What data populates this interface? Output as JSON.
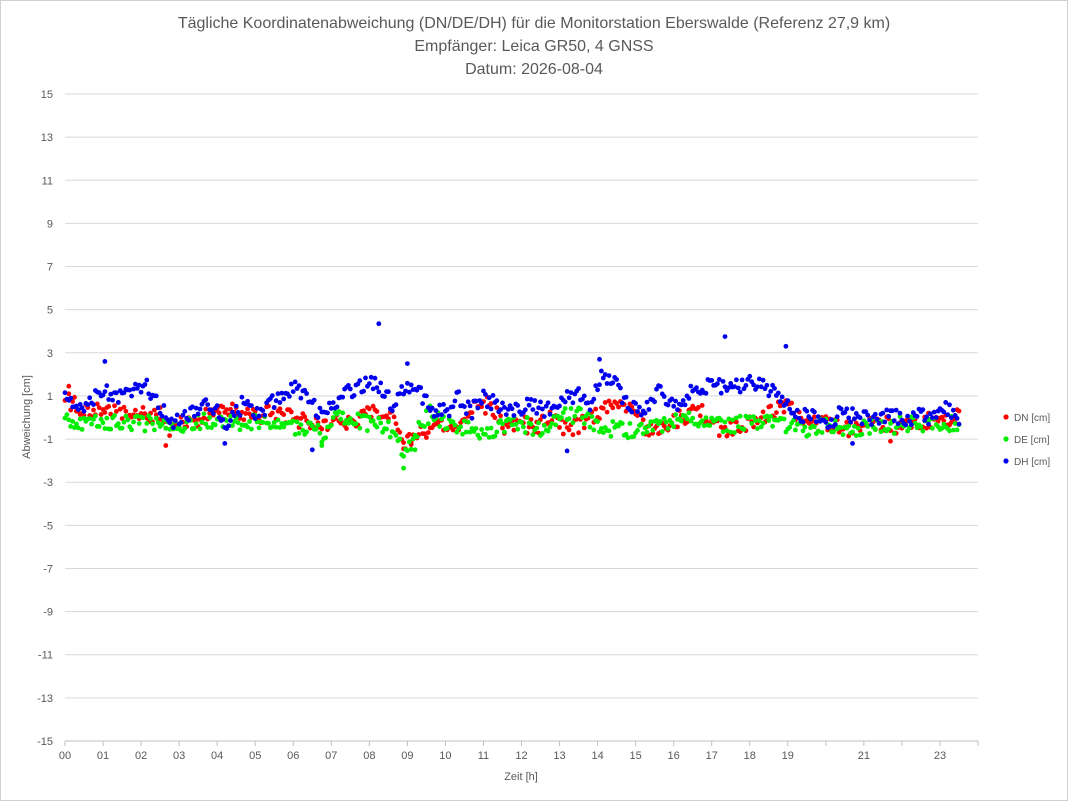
{
  "chart_data": {
    "type": "scatter",
    "title": "Tägliche Koordinatenabweichung (DN/DE/DH) für die Monitorstation Eberswalde (Referenz 27,9 km)",
    "subtitle_1": "Empfänger: Leica GR50, 4 GNSS",
    "subtitle_2": "Datum: 2026-08-04",
    "xlabel": "Zeit [h]",
    "ylabel": "Abweichung [cm]",
    "xlim": [
      0,
      24
    ],
    "ylim": [
      -15,
      15
    ],
    "x_ticks": [
      "00",
      "01",
      "02",
      "03",
      "04",
      "05",
      "06",
      "07",
      "08",
      "09",
      "10",
      "11",
      "12",
      "13",
      "14",
      "15",
      "16",
      "17",
      "18",
      "19",
      "21",
      "23"
    ],
    "y_ticks": [
      15,
      13,
      11,
      9,
      7,
      5,
      3,
      1,
      -1,
      -3,
      -5,
      -7,
      -9,
      -11,
      -13,
      -15
    ],
    "y_tick_labels": [
      "15",
      "13",
      "11",
      "9",
      "7",
      "5",
      "3",
      "1",
      "-1",
      "-3",
      "-5",
      "-7",
      "-9",
      "-11",
      "-13",
      "-15"
    ],
    "ylabel_display": "Abweichung [cm]",
    "grid": "horizontal",
    "legend_position": "right",
    "sampling_interval_min": 3,
    "series": [
      {
        "name": "DN [cm]",
        "color": "#ff0000",
        "centers": [
          [
            0,
            0.9
          ],
          [
            0.5,
            0.3
          ],
          [
            1,
            0.4
          ],
          [
            1.5,
            0.3
          ],
          [
            2,
            0.2
          ],
          [
            2.5,
            0.1
          ],
          [
            2.8,
            -0.6
          ],
          [
            3,
            -0.3
          ],
          [
            3.5,
            -0.1
          ],
          [
            4,
            0.3
          ],
          [
            4.5,
            0.3
          ],
          [
            5,
            0.1
          ],
          [
            5.5,
            0.2
          ],
          [
            6,
            0.0
          ],
          [
            6.6,
            -0.4
          ],
          [
            7,
            -0.2
          ],
          [
            7.5,
            -0.3
          ],
          [
            8,
            0.3
          ],
          [
            8.5,
            0.3
          ],
          [
            8.95,
            -1.2
          ],
          [
            9.3,
            -0.7
          ],
          [
            9.8,
            -0.4
          ],
          [
            10.2,
            -0.6
          ],
          [
            10.8,
            0.5
          ],
          [
            11.2,
            0.6
          ],
          [
            11.6,
            -0.5
          ],
          [
            12,
            -0.3
          ],
          [
            12.4,
            -0.5
          ],
          [
            12.8,
            0.2
          ],
          [
            13.2,
            -0.6
          ],
          [
            13.6,
            -0.3
          ],
          [
            14,
            0.2
          ],
          [
            14.3,
            0.6
          ],
          [
            14.7,
            0.5
          ],
          [
            15,
            0.3
          ],
          [
            15.3,
            -0.6
          ],
          [
            15.7,
            -0.4
          ],
          [
            16.2,
            0.0
          ],
          [
            16.7,
            0.3
          ],
          [
            17.2,
            -0.6
          ],
          [
            17.7,
            -0.5
          ],
          [
            18.2,
            -0.1
          ],
          [
            18.6,
            0.3
          ],
          [
            19,
            0.5
          ],
          [
            19.5,
            -0.3
          ],
          [
            20,
            -0.3
          ],
          [
            20.5,
            -0.5
          ],
          [
            21,
            -0.4
          ],
          [
            21.5,
            -0.2
          ],
          [
            22,
            -0.5
          ],
          [
            22.5,
            -0.2
          ],
          [
            23,
            -0.1
          ],
          [
            23.5,
            0.1
          ]
        ],
        "outliers": [
          [
            0.1,
            1.45
          ],
          [
            2.65,
            -1.3
          ],
          [
            8.9,
            -1.45
          ],
          [
            9.1,
            -1.25
          ],
          [
            21.7,
            -1.1
          ]
        ]
      },
      {
        "name": "DE [cm]",
        "color": "#00ee00",
        "centers": [
          [
            0,
            -0.1
          ],
          [
            0.5,
            -0.3
          ],
          [
            1,
            -0.2
          ],
          [
            1.5,
            -0.2
          ],
          [
            2,
            -0.3
          ],
          [
            2.5,
            -0.2
          ],
          [
            3,
            -0.3
          ],
          [
            3.5,
            -0.2
          ],
          [
            4,
            -0.1
          ],
          [
            4.5,
            -0.2
          ],
          [
            5,
            -0.2
          ],
          [
            5.5,
            -0.3
          ],
          [
            6,
            -0.5
          ],
          [
            6.5,
            -0.4
          ],
          [
            6.8,
            -0.9
          ],
          [
            7.1,
            0.2
          ],
          [
            7.5,
            0.0
          ],
          [
            8,
            -0.3
          ],
          [
            8.5,
            -0.5
          ],
          [
            8.95,
            -1.6
          ],
          [
            9.3,
            -0.5
          ],
          [
            9.6,
            0.2
          ],
          [
            10,
            -0.2
          ],
          [
            10.5,
            -0.5
          ],
          [
            11,
            -0.7
          ],
          [
            11.5,
            -0.4
          ],
          [
            12,
            -0.3
          ],
          [
            12.5,
            -0.5
          ],
          [
            13,
            0.1
          ],
          [
            13.5,
            0.1
          ],
          [
            14,
            -0.4
          ],
          [
            14.5,
            -0.6
          ],
          [
            15,
            -0.6
          ],
          [
            15.5,
            -0.4
          ],
          [
            16,
            -0.2
          ],
          [
            16.5,
            -0.1
          ],
          [
            17,
            -0.3
          ],
          [
            17.5,
            -0.4
          ],
          [
            18,
            -0.2
          ],
          [
            18.5,
            -0.3
          ],
          [
            19,
            -0.3
          ],
          [
            19.5,
            -0.5
          ],
          [
            20,
            -0.3
          ],
          [
            20.5,
            -0.6
          ],
          [
            21,
            -0.4
          ],
          [
            21.5,
            -0.5
          ],
          [
            22,
            -0.3
          ],
          [
            22.5,
            -0.3
          ],
          [
            23,
            -0.4
          ],
          [
            23.5,
            -0.2
          ]
        ],
        "outliers": [
          [
            8.9,
            -2.35
          ],
          [
            6.75,
            -1.3
          ],
          [
            9.2,
            -1.5
          ]
        ]
      },
      {
        "name": "DH [cm]",
        "color": "#0000ee",
        "centers": [
          [
            0,
            0.8
          ],
          [
            0.3,
            0.3
          ],
          [
            0.7,
            0.9
          ],
          [
            1,
            1.2
          ],
          [
            1.4,
            1.0
          ],
          [
            1.8,
            1.1
          ],
          [
            2.1,
            1.6
          ],
          [
            2.5,
            0.5
          ],
          [
            2.9,
            -0.2
          ],
          [
            3.3,
            0.1
          ],
          [
            3.7,
            0.5
          ],
          [
            4,
            0.2
          ],
          [
            4.3,
            -0.3
          ],
          [
            4.7,
            0.7
          ],
          [
            5,
            0.2
          ],
          [
            5.4,
            0.6
          ],
          [
            5.8,
            1.0
          ],
          [
            6.1,
            1.5
          ],
          [
            6.4,
            0.7
          ],
          [
            6.8,
            0.1
          ],
          [
            7.1,
            0.7
          ],
          [
            7.5,
            1.2
          ],
          [
            7.9,
            1.6
          ],
          [
            8.3,
            1.4
          ],
          [
            8.6,
            0.6
          ],
          [
            8.9,
            1.4
          ],
          [
            9.3,
            1.2
          ],
          [
            9.7,
            0.4
          ],
          [
            10,
            0.2
          ],
          [
            10.3,
            0.9
          ],
          [
            10.7,
            0.3
          ],
          [
            11,
            0.9
          ],
          [
            11.4,
            0.6
          ],
          [
            11.8,
            0.3
          ],
          [
            12.2,
            0.7
          ],
          [
            12.6,
            0.4
          ],
          [
            13,
            0.7
          ],
          [
            13.4,
            1.1
          ],
          [
            13.8,
            0.7
          ],
          [
            14.1,
            2.1
          ],
          [
            14.5,
            1.4
          ],
          [
            14.8,
            0.6
          ],
          [
            15.2,
            0.4
          ],
          [
            15.6,
            1.3
          ],
          [
            16,
            0.5
          ],
          [
            16.4,
            1.1
          ],
          [
            16.8,
            1.4
          ],
          [
            17.2,
            1.5
          ],
          [
            17.6,
            1.4
          ],
          [
            18,
            1.8
          ],
          [
            18.4,
            1.3
          ],
          [
            18.8,
            1.1
          ],
          [
            19.2,
            0.2
          ],
          [
            19.6,
            0.0
          ],
          [
            20,
            -0.3
          ],
          [
            20.4,
            0.2
          ],
          [
            20.8,
            0.0
          ],
          [
            21.2,
            -0.1
          ],
          [
            21.6,
            0.1
          ],
          [
            22,
            -0.1
          ],
          [
            22.4,
            0.1
          ],
          [
            22.8,
            -0.1
          ],
          [
            23.2,
            0.4
          ],
          [
            23.5,
            0.0
          ]
        ],
        "outliers": [
          [
            8.25,
            4.35
          ],
          [
            17.35,
            3.75
          ],
          [
            18.95,
            3.3
          ],
          [
            9.0,
            2.5
          ],
          [
            14.05,
            2.7
          ],
          [
            1.05,
            2.6
          ],
          [
            20.7,
            -1.2
          ],
          [
            4.2,
            -1.2
          ],
          [
            6.5,
            -1.5
          ],
          [
            13.2,
            -1.55
          ]
        ]
      }
    ]
  }
}
